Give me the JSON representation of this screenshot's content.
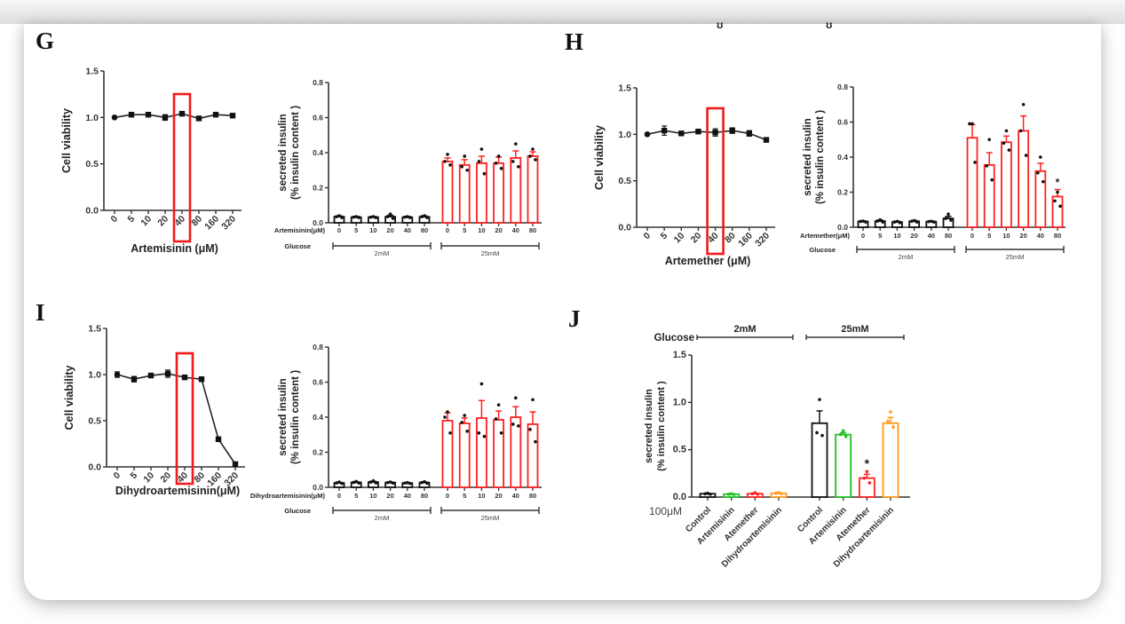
{
  "panel_labels": [
    "G",
    "H",
    "I",
    "J"
  ],
  "colors": {
    "black": "#111111",
    "red": "#ff2020",
    "green": "#22c022",
    "orange": "#ff9a1a",
    "highlight": "#ee1c1c",
    "axis": "#333333"
  },
  "chart_data": [
    {
      "id": "G-viability",
      "panel": "G",
      "type": "line",
      "title": "",
      "xlabel": "Artemisinin (μM)",
      "ylabel": "Cell viability",
      "categories": [
        "0",
        "5",
        "10",
        "20",
        "40",
        "80",
        "160",
        "320"
      ],
      "values": [
        1.0,
        1.03,
        1.03,
        1.0,
        1.04,
        0.99,
        1.03,
        1.02
      ],
      "errors": [
        0.01,
        0.02,
        0.02,
        0.03,
        0.02,
        0.02,
        0.02,
        0.02
      ],
      "ylim": [
        0,
        1.5
      ],
      "yticks": [
        "0.0",
        "0.5",
        "1.0",
        "1.5"
      ],
      "highlight_category": "40"
    },
    {
      "id": "G-insulin",
      "panel": "G",
      "type": "bar",
      "ylabel": "secreted insulin",
      "ylabel2": "(% insulin content )",
      "treatment_label": "Artemisinin(μM)",
      "glucose_label": "Glucose",
      "ylim": [
        0,
        0.8
      ],
      "yticks": [
        "0.0",
        "0.2",
        "0.4",
        "0.6",
        "0.8"
      ],
      "groups": [
        {
          "glucose": "2mM",
          "color": "black",
          "categories": [
            "0",
            "5",
            "10",
            "20",
            "40",
            "80"
          ],
          "values": [
            0.035,
            0.032,
            0.032,
            0.035,
            0.032,
            0.034
          ],
          "errors": [
            0.004,
            0.004,
            0.004,
            0.008,
            0.004,
            0.005
          ],
          "points": [
            [
              0.04,
              0.035,
              0.03
            ],
            [
              0.035,
              0.032,
              0.03
            ],
            [
              0.035,
              0.032,
              0.03
            ],
            [
              0.05,
              0.035,
              0.025
            ],
            [
              0.035,
              0.032,
              0.03
            ],
            [
              0.04,
              0.035,
              0.03
            ]
          ]
        },
        {
          "glucose": "25mM",
          "color": "red",
          "categories": [
            "0",
            "5",
            "10",
            "20",
            "40",
            "80"
          ],
          "values": [
            0.35,
            0.33,
            0.34,
            0.34,
            0.37,
            0.38
          ],
          "errors": [
            0.02,
            0.03,
            0.04,
            0.035,
            0.04,
            0.025
          ],
          "points": [
            [
              0.39,
              0.35,
              0.33
            ],
            [
              0.38,
              0.32,
              0.3
            ],
            [
              0.42,
              0.35,
              0.28
            ],
            [
              0.38,
              0.34,
              0.31
            ],
            [
              0.45,
              0.35,
              0.32
            ],
            [
              0.42,
              0.38,
              0.36
            ]
          ]
        }
      ]
    },
    {
      "id": "H-viability",
      "panel": "H",
      "type": "line",
      "title": "",
      "xlabel": "Artemether (μM)",
      "ylabel": "Cell viability",
      "categories": [
        "0",
        "5",
        "10",
        "20",
        "40",
        "80",
        "160",
        "320"
      ],
      "values": [
        1.0,
        1.04,
        1.01,
        1.03,
        1.02,
        1.04,
        1.01,
        0.94
      ],
      "errors": [
        0.01,
        0.05,
        0.02,
        0.02,
        0.04,
        0.03,
        0.03,
        0.02
      ],
      "ylim": [
        0,
        1.5
      ],
      "yticks": [
        "0.0",
        "0.5",
        "1.0",
        "1.5"
      ],
      "highlight_category": "40"
    },
    {
      "id": "H-insulin",
      "panel": "H",
      "type": "bar",
      "ylabel": "secreted insulin",
      "ylabel2": "(% insulin content )",
      "treatment_label": "Artemether(μM)",
      "glucose_label": "Glucose",
      "ylim": [
        0,
        0.8
      ],
      "yticks": [
        "0.0",
        "0.2",
        "0.4",
        "0.6",
        "0.8"
      ],
      "groups": [
        {
          "glucose": "2mM",
          "color": "black",
          "categories": [
            "0",
            "5",
            "10",
            "20",
            "40",
            "80"
          ],
          "values": [
            0.033,
            0.035,
            0.03,
            0.034,
            0.032,
            0.05
          ],
          "errors": [
            0.003,
            0.006,
            0.004,
            0.005,
            0.003,
            0.012
          ],
          "points": [
            [
              0.035,
              0.033,
              0.03
            ],
            [
              0.042,
              0.035,
              0.03
            ],
            [
              0.033,
              0.03,
              0.026
            ],
            [
              0.038,
              0.034,
              0.03
            ],
            [
              0.034,
              0.032,
              0.03
            ],
            [
              0.075,
              0.05,
              0.04
            ]
          ]
        },
        {
          "glucose": "25mM",
          "color": "red",
          "categories": [
            "0",
            "5",
            "10",
            "20",
            "40",
            "80"
          ],
          "values": [
            0.51,
            0.355,
            0.485,
            0.55,
            0.32,
            0.175
          ],
          "errors": [
            0.075,
            0.07,
            0.035,
            0.085,
            0.045,
            0.04
          ],
          "points": [
            [
              0.59,
              0.59,
              0.37
            ],
            [
              0.5,
              0.35,
              0.27
            ],
            [
              0.55,
              0.48,
              0.44
            ],
            [
              0.7,
              0.55,
              0.41
            ],
            [
              0.4,
              0.31,
              0.26
            ],
            [
              0.2,
              0.15,
              0.12
            ]
          ]
        }
      ],
      "annotations": [
        {
          "group": 1,
          "index": 5,
          "text": "*"
        }
      ]
    },
    {
      "id": "I-viability",
      "panel": "I",
      "type": "line",
      "title": "",
      "xlabel": "Dihydroartemisinin(μM)",
      "ylabel": "Cell viability",
      "categories": [
        "0",
        "5",
        "10",
        "20",
        "40",
        "80",
        "160",
        "320"
      ],
      "values": [
        1.0,
        0.95,
        0.99,
        1.01,
        0.97,
        0.95,
        0.3,
        0.03
      ],
      "errors": [
        0.03,
        0.03,
        0.01,
        0.04,
        0.01,
        0.01,
        0.01,
        0.01
      ],
      "ylim": [
        0,
        1.5
      ],
      "yticks": [
        "0.0",
        "0.5",
        "1.0",
        "1.5"
      ],
      "highlight_category": "40"
    },
    {
      "id": "I-insulin",
      "panel": "I",
      "type": "bar",
      "ylabel": "secreted insulin",
      "ylabel2": "(% insulin content )",
      "treatment_label": "Dihydroartemisinin(μM)",
      "glucose_label": "Glucose",
      "ylim": [
        0,
        0.8
      ],
      "yticks": [
        "0.0",
        "0.2",
        "0.4",
        "0.6",
        "0.8"
      ],
      "groups": [
        {
          "glucose": "2mM",
          "color": "black",
          "categories": [
            "0",
            "5",
            "10",
            "20",
            "40",
            "80"
          ],
          "values": [
            0.025,
            0.028,
            0.03,
            0.027,
            0.024,
            0.027
          ],
          "errors": [
            0.003,
            0.003,
            0.004,
            0.003,
            0.003,
            0.003
          ],
          "points": [
            [
              0.03,
              0.025,
              0.022
            ],
            [
              0.033,
              0.028,
              0.024
            ],
            [
              0.037,
              0.03,
              0.025
            ],
            [
              0.03,
              0.027,
              0.024
            ],
            [
              0.027,
              0.024,
              0.022
            ],
            [
              0.032,
              0.027,
              0.023
            ]
          ]
        },
        {
          "glucose": "25mM",
          "color": "red",
          "categories": [
            "0",
            "5",
            "10",
            "20",
            "40",
            "80"
          ],
          "values": [
            0.38,
            0.365,
            0.395,
            0.385,
            0.4,
            0.36
          ],
          "errors": [
            0.045,
            0.03,
            0.1,
            0.05,
            0.06,
            0.07
          ],
          "points": [
            [
              0.43,
              0.4,
              0.31
            ],
            [
              0.41,
              0.37,
              0.32
            ],
            [
              0.59,
              0.31,
              0.29
            ],
            [
              0.47,
              0.39,
              0.31
            ],
            [
              0.51,
              0.36,
              0.35
            ],
            [
              0.5,
              0.33,
              0.26
            ]
          ]
        }
      ]
    },
    {
      "id": "J-insulin",
      "panel": "J",
      "type": "bar",
      "ylabel": "secreted insulin",
      "ylabel2": "(% insulin content )",
      "treatment_label": "100μM",
      "glucose_label": "Glucose",
      "ylim": [
        0,
        1.5
      ],
      "yticks": [
        "0.0",
        "0.5",
        "1.0",
        "1.5"
      ],
      "groups": [
        {
          "glucose": "2mM",
          "categories": [
            "Control",
            "Artemisinin",
            "Atemether",
            "Dihydroartemisinin"
          ],
          "colors": [
            "black",
            "green",
            "red",
            "orange"
          ],
          "values": [
            0.035,
            0.03,
            0.035,
            0.04
          ],
          "errors": [
            0.005,
            0.004,
            0.005,
            0.005
          ],
          "points": [
            [
              0.04,
              0.035,
              0.03
            ],
            [
              0.035,
              0.03,
              0.028
            ],
            [
              0.045,
              0.035,
              0.03
            ],
            [
              0.048,
              0.04,
              0.035
            ]
          ]
        },
        {
          "glucose": "25mM",
          "categories": [
            "Control",
            "Artemisinin",
            "Atemether",
            "Dihydroartemisinin"
          ],
          "colors": [
            "black",
            "green",
            "red",
            "orange"
          ],
          "values": [
            0.78,
            0.66,
            0.2,
            0.78
          ],
          "errors": [
            0.13,
            0.02,
            0.04,
            0.06
          ],
          "points": [
            [
              1.03,
              0.68,
              0.65
            ],
            [
              0.7,
              0.66,
              0.64
            ],
            [
              0.27,
              0.2,
              0.15
            ],
            [
              0.9,
              0.8,
              0.74
            ]
          ]
        }
      ],
      "annotations": [
        {
          "group": 1,
          "index": 2,
          "text": "*"
        }
      ]
    }
  ]
}
